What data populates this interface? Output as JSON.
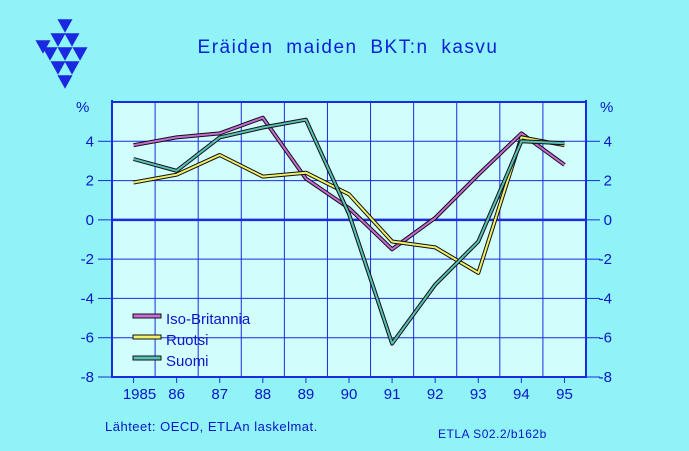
{
  "title": "Eräiden maiden BKT:n kasvu",
  "source_note": "Lähteet:   OECD, ETLAn laskelmat.",
  "code_note": "ETLA S02.2/b162b",
  "colors": {
    "background": "#8ff3f8",
    "plot_background": "#d2fdfd",
    "grid": "#1a2be0",
    "text": "#0b14c8"
  },
  "chart_data": {
    "type": "line",
    "x": [
      "1985",
      "86",
      "87",
      "88",
      "89",
      "90",
      "91",
      "92",
      "93",
      "94",
      "95"
    ],
    "ylabel_left": "%",
    "ylabel_right": "%",
    "ylim": [
      -8,
      6
    ],
    "yticks": [
      -8,
      -6,
      -4,
      -2,
      0,
      2,
      4
    ],
    "grid": true,
    "legend_position": "bottom-left",
    "series": [
      {
        "name": "Iso-Britannia",
        "color": "#c86ad8",
        "values": [
          3.8,
          4.2,
          4.4,
          5.2,
          2.1,
          0.6,
          -1.5,
          0.1,
          2.3,
          4.4,
          2.8
        ]
      },
      {
        "name": "Ruotsi",
        "color": "#f2f06a",
        "values": [
          1.9,
          2.3,
          3.3,
          2.2,
          2.4,
          1.3,
          -1.1,
          -1.4,
          -2.7,
          4.2,
          3.8
        ]
      },
      {
        "name": "Suomi",
        "color": "#58c0b4",
        "values": [
          3.1,
          2.5,
          4.2,
          4.7,
          5.1,
          0.3,
          -6.3,
          -3.3,
          -1.1,
          4.0,
          3.9
        ]
      }
    ]
  }
}
